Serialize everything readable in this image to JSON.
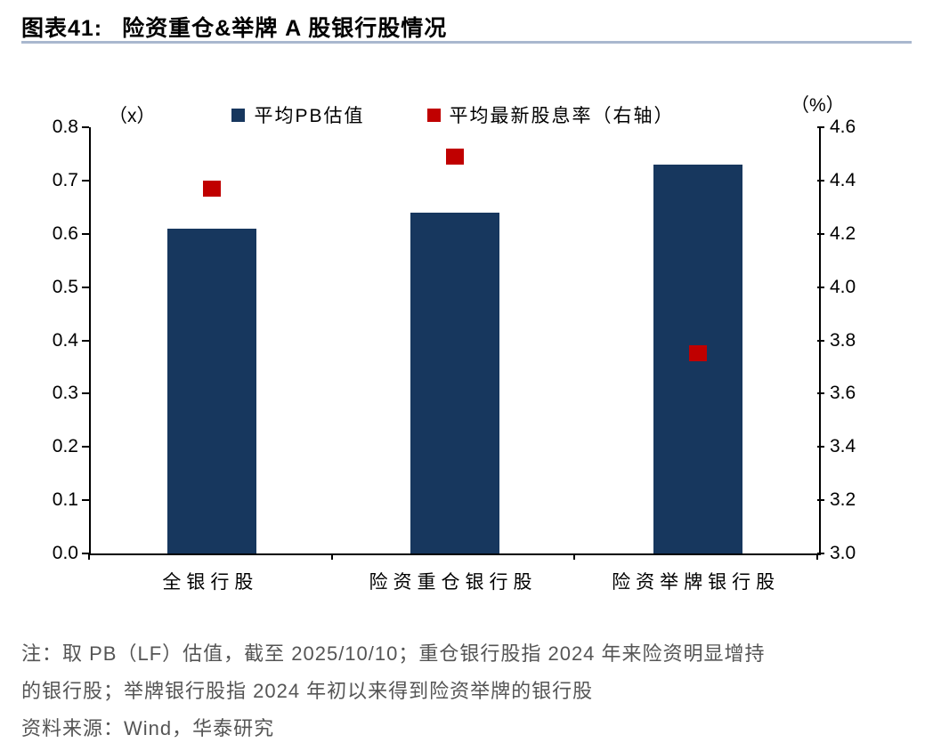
{
  "header": {
    "title_prefix": "图表41:",
    "title": "险资重仓&举牌 A 股银行股情况"
  },
  "chart_data": {
    "type": "bar",
    "title": "险资重仓&举牌 A 股银行股情况",
    "categories": [
      "全银行股",
      "险资重仓银行股",
      "险资举牌银行股"
    ],
    "series": [
      {
        "name": "平均PB估值",
        "type": "bar",
        "axis": "left",
        "color": "#17375e",
        "values": [
          0.61,
          0.64,
          0.73
        ]
      },
      {
        "name": "平均最新股息率（右轴）",
        "type": "point",
        "axis": "right",
        "color": "#c00000",
        "values": [
          4.37,
          4.49,
          3.75
        ]
      }
    ],
    "left_axis": {
      "label": "（x）",
      "min": 0.0,
      "max": 0.8,
      "step": 0.1,
      "ticks": [
        "0.8",
        "0.7",
        "0.6",
        "0.5",
        "0.4",
        "0.3",
        "0.2",
        "0.1",
        "0.0"
      ]
    },
    "right_axis": {
      "label": "（%）",
      "min": 3.0,
      "max": 4.6,
      "step": 0.2,
      "ticks": [
        "4.6",
        "4.4",
        "4.2",
        "4.0",
        "3.8",
        "3.6",
        "3.4",
        "3.2",
        "3.0"
      ]
    },
    "legend_position": "top",
    "grid": false
  },
  "footer": {
    "note_lines": [
      "注：取 PB（LF）估值，截至 2025/10/10；重仓银行股指 2024 年来险资明显增持",
      "的银行股；举牌银行股指 2024 年初以来得到险资举牌的银行股"
    ],
    "source": "资料来源：Wind，华泰研究"
  }
}
